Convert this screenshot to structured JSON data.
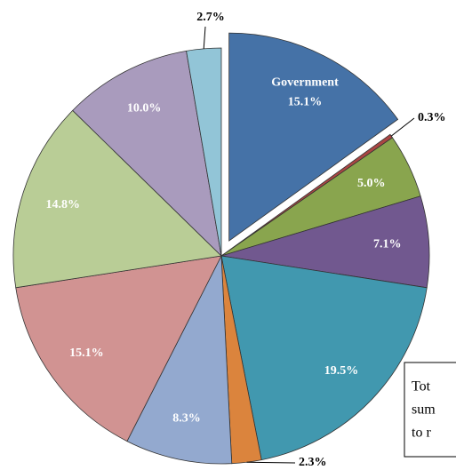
{
  "chart_data": {
    "type": "pie",
    "categories": [
      "Government",
      null,
      null,
      null,
      null,
      null,
      null,
      null,
      null,
      null,
      null
    ],
    "values": [
      15.1,
      0.3,
      5.0,
      7.1,
      19.5,
      2.3,
      8.3,
      15.1,
      14.8,
      10.0,
      2.7
    ],
    "value_labels": [
      "15.1%",
      "0.3%",
      "5.0%",
      "7.1%",
      "19.5%",
      "2.3%",
      "8.3%",
      "15.1%",
      "14.8%",
      "10.0%",
      "2.7%"
    ],
    "colors": [
      "#4572a7",
      "#aa4643",
      "#89a54e",
      "#71588f",
      "#4198af",
      "#db843d",
      "#93a9cf",
      "#d19392",
      "#b9cd96",
      "#a99bbd",
      "#92c5d7"
    ],
    "exploded": [
      0
    ],
    "annotation": [
      "Tot",
      "sum",
      "to r"
    ]
  }
}
